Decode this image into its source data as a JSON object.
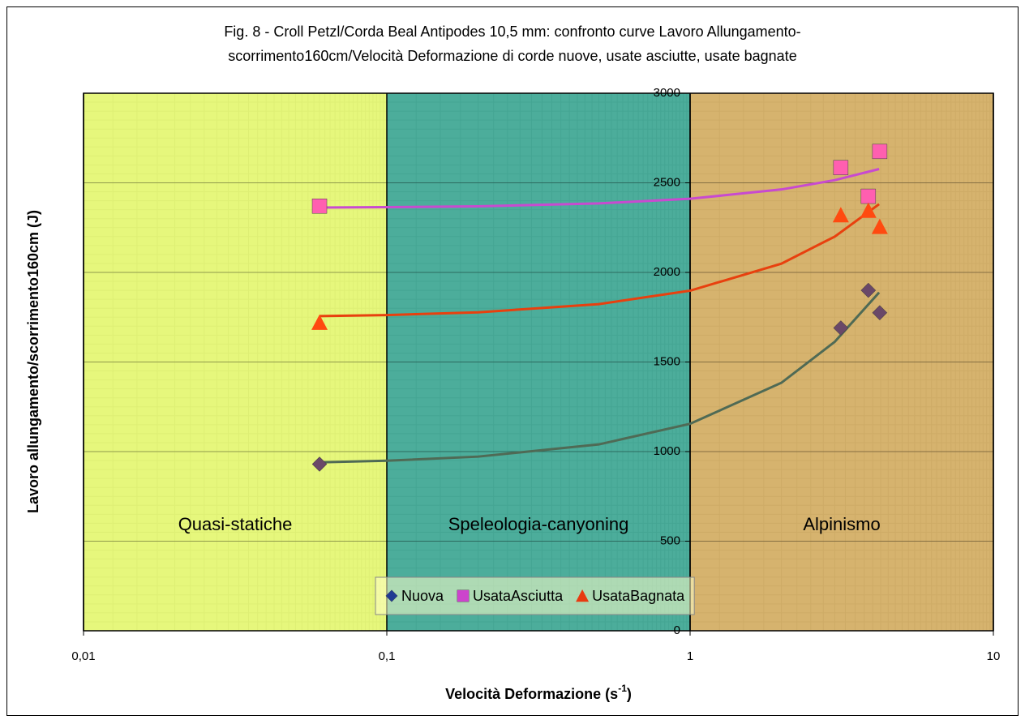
{
  "chart_data": {
    "type": "scatter",
    "title": [
      "Fig. 8 - Croll Petzl/Corda Beal Antipodes 10,5 mm: confronto curve Lavoro Allungamento-",
      "scorrimento160cm/Velocità Deformazione di corde nuove, usate asciutte, usate bagnate"
    ],
    "xlabel": "Velocità Deformazione (s",
    "xlabel_sup": "-1",
    "xlabel_end": ")",
    "ylabel": "Lavoro allungamento/scorrimento160cm (J)",
    "xscale": "log",
    "xlim": [
      0.01,
      10
    ],
    "xticks": [
      {
        "value": 0.01,
        "label": "0,01"
      },
      {
        "value": 0.1,
        "label": "0,1"
      },
      1,
      10
    ],
    "ylim": [
      0,
      3000
    ],
    "yticks": [
      0,
      500,
      1000,
      1500,
      2000,
      2500,
      3000
    ],
    "y_axis_crosses": 1,
    "grid": true,
    "legend": "bottom-center",
    "regions": [
      {
        "label": "Quasi-statiche",
        "from": 0.01,
        "to": 0.1,
        "color": "#dcf445"
      },
      {
        "label": "Speleologia-canyoning",
        "from": 0.1,
        "to": 1,
        "color": "#008a70"
      },
      {
        "label": "Alpinismo",
        "from": 1,
        "to": 10,
        "color": "#c59331"
      }
    ],
    "series": [
      {
        "name": "Nuova",
        "marker": "diamond",
        "color": "#6a4868",
        "legend_color": "#1f3a93",
        "x": [
          0.06,
          3.14,
          3.87,
          4.22
        ],
        "values": [
          930,
          1690,
          1900,
          1775
        ],
        "trend": {
          "color": "#4f6a55",
          "x": [
            0.06,
            0.1,
            0.2,
            0.5,
            1,
            2,
            3,
            4.2
          ],
          "y": [
            940,
            949,
            972,
            1040,
            1155,
            1384,
            1613,
            1888
          ]
        }
      },
      {
        "name": "UsataAsciutta",
        "marker": "square",
        "color": "#ff5fb0",
        "legend_color": "#cc44cc",
        "x": [
          0.06,
          3.14,
          3.87,
          4.22
        ],
        "values": [
          2370,
          2585,
          2425,
          2675
        ],
        "trend": {
          "color": "#c84ad0",
          "x": [
            0.06,
            0.1,
            0.2,
            0.5,
            1,
            2,
            3,
            4.2
          ],
          "y": [
            2362,
            2364,
            2369,
            2385,
            2411,
            2463,
            2515,
            2577
          ]
        }
      },
      {
        "name": "UsataBagnata",
        "marker": "triangle",
        "color": "#ff4a10",
        "legend_color": "#e83a10",
        "x": [
          0.06,
          3.14,
          3.87,
          4.22
        ],
        "values": [
          1720,
          2320,
          2345,
          2255
        ],
        "trend": {
          "color": "#e8400e",
          "x": [
            0.06,
            0.1,
            0.2,
            0.5,
            1,
            2,
            3,
            4.2
          ],
          "y": [
            1756,
            1762,
            1777,
            1823,
            1898,
            2049,
            2200,
            2381
          ]
        }
      }
    ]
  }
}
